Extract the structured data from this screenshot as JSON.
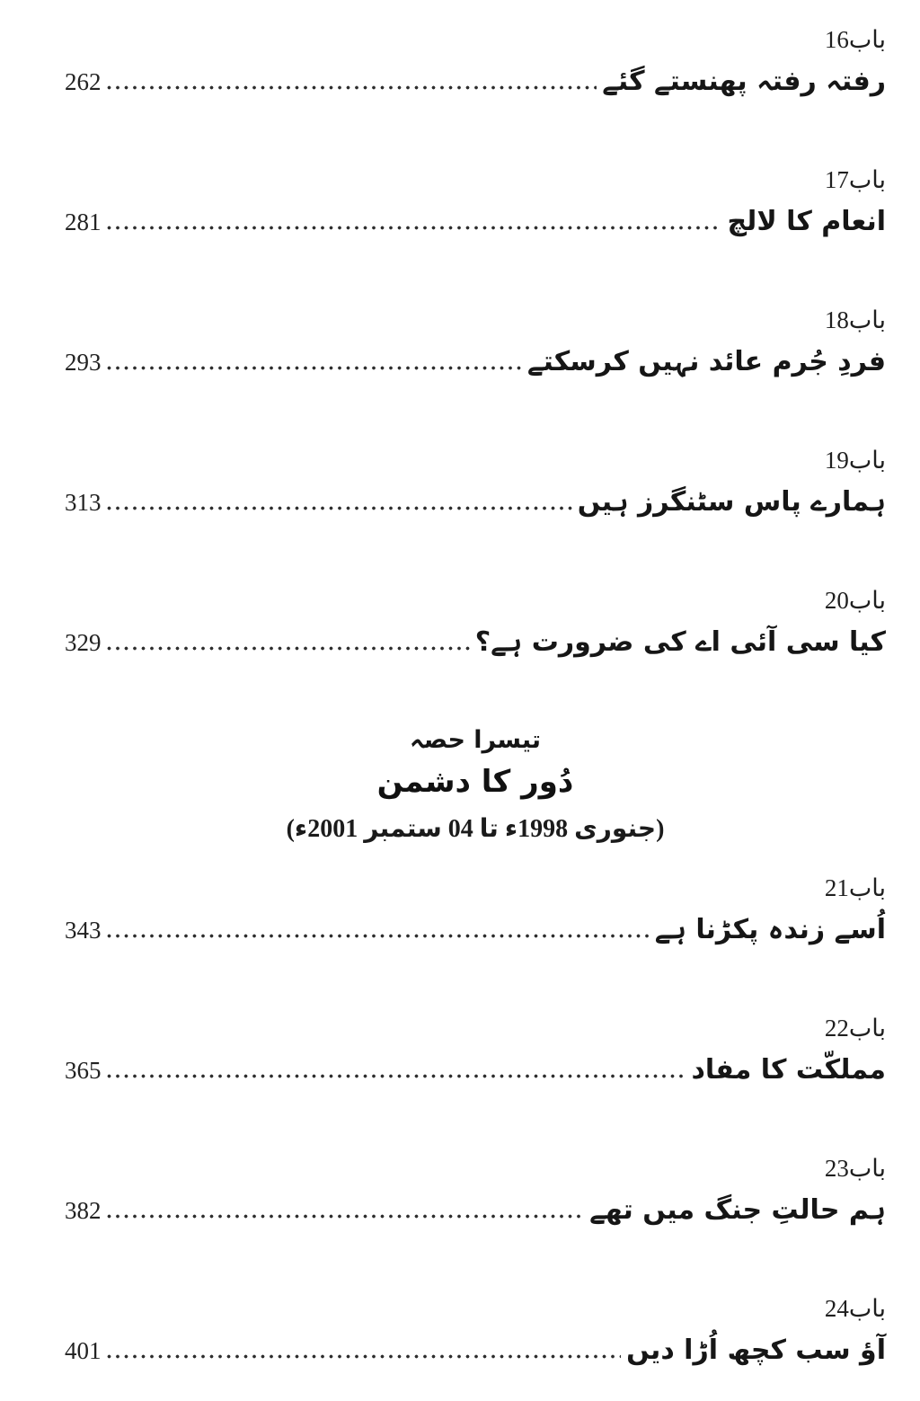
{
  "page": {
    "background_color": "#ffffff",
    "text_color": "#1f1f1f"
  },
  "toc": {
    "entries": [
      {
        "chapter_label": "باب16",
        "title": "رفتہ رفتہ پھنستے گئے",
        "page": "262"
      },
      {
        "chapter_label": "باب17",
        "title": "انعام کا لالچ",
        "page": "281"
      },
      {
        "chapter_label": "باب18",
        "title": "فردِ جُرم عائد نہیں کرسکتے",
        "page": "293"
      },
      {
        "chapter_label": "باب19",
        "title": "ہمارے پاس سٹنگرز ہیں",
        "page": "313"
      },
      {
        "chapter_label": "باب20",
        "title": "کیا سی آئی اے کی ضرورت ہے؟",
        "page": "329"
      },
      {
        "chapter_label": "باب21",
        "title": "اُسے زندہ پکڑنا ہے",
        "page": "343"
      },
      {
        "chapter_label": "باب22",
        "title": "مملکّت کا مفاد",
        "page": "365"
      },
      {
        "chapter_label": "باب23",
        "title": "ہم حالتِ جنگ میں تھے",
        "page": "382"
      },
      {
        "chapter_label": "باب24",
        "title": "آؤ سب کچھ اُڑا دیں",
        "page": "401"
      }
    ],
    "section_break": {
      "part_label": "تیسرا حصہ",
      "part_title": "دُور کا دشمن",
      "date_range": "(جنوری 1998ء تا 04 ستمبر 2001ء)"
    }
  }
}
